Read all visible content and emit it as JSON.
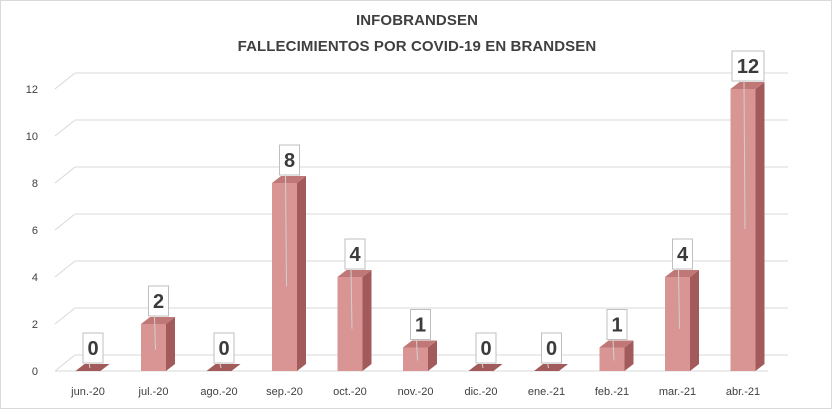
{
  "chart_data": {
    "type": "bar",
    "title": "INFOBRANDSEN",
    "subtitle": "FALLECIMIENTOS POR COVID-19 EN BRANDSEN",
    "categories": [
      "jun.-20",
      "jul.-20",
      "ago.-20",
      "sep.-20",
      "oct.-20",
      "nov.-20",
      "dic.-20",
      "ene.-21",
      "feb.-21",
      "mar.-21",
      "abr.-21"
    ],
    "values": [
      0,
      2,
      0,
      8,
      4,
      1,
      0,
      0,
      1,
      4,
      12
    ],
    "data_labels": [
      "0",
      "2",
      "0",
      "8",
      "4",
      "1",
      "0",
      "0",
      "1",
      "4",
      "12"
    ],
    "yticks": [
      "0",
      "2",
      "4",
      "6",
      "8",
      "10",
      "12"
    ],
    "ylim": [
      0,
      12
    ],
    "grid": true,
    "style": "3d-column",
    "colors": {
      "bar_front": "#d99594",
      "bar_side": "#a25b5a",
      "bar_top": "#c07877",
      "grid": "#d9d9d9"
    }
  }
}
